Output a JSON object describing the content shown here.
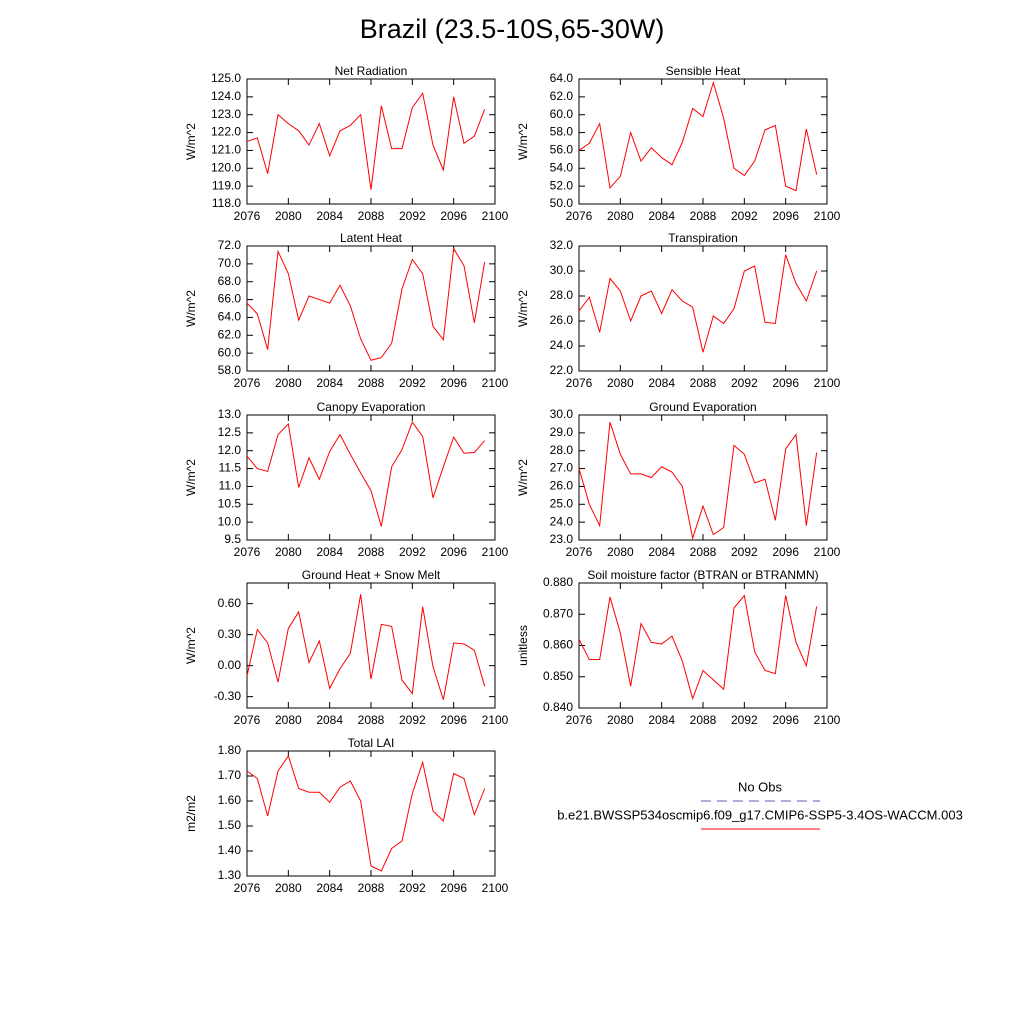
{
  "title": "Brazil (23.5-10S,65-30W)",
  "legend": [
    {
      "name": "No Obs",
      "color": "#5a5ab4",
      "dash": true
    },
    {
      "name": "b.e21.BWSSP534oscmip6.f09_g17.CMIP6-SSP5-3.4OS-WACCM.003",
      "color": "#ff0000"
    }
  ],
  "chart_data": [
    {
      "type": "line",
      "title": "Net Radiation",
      "ylabel": "W/m^2",
      "color": "#ff0000",
      "x": [
        2076,
        2077,
        2078,
        2079,
        2080,
        2081,
        2082,
        2083,
        2084,
        2085,
        2086,
        2087,
        2088,
        2089,
        2090,
        2091,
        2092,
        2093,
        2094,
        2095,
        2096,
        2097,
        2098,
        2099
      ],
      "values": [
        121.5,
        121.7,
        119.7,
        123.0,
        122.5,
        122.1,
        121.3,
        122.5,
        120.7,
        122.1,
        122.4,
        123.0,
        118.8,
        123.5,
        121.1,
        121.1,
        123.4,
        124.2,
        121.3,
        119.9,
        124.0,
        121.4,
        121.8,
        123.3
      ],
      "xlim": [
        2076,
        2100
      ],
      "xticks": [
        2076,
        2080,
        2084,
        2088,
        2092,
        2096,
        2100
      ],
      "ylim": [
        118,
        125
      ],
      "yticks": [
        {
          "value": 118,
          "label": "118.0"
        },
        {
          "value": 119,
          "label": "119.0"
        },
        {
          "value": 120,
          "label": "120.0"
        },
        {
          "value": 121,
          "label": "121.0"
        },
        {
          "value": 122,
          "label": "122.0"
        },
        {
          "value": 123,
          "label": "123.0"
        },
        {
          "value": 124,
          "label": "124.0"
        },
        {
          "value": 125,
          "label": "125.0"
        }
      ]
    },
    {
      "type": "line",
      "title": "Sensible Heat",
      "ylabel": "W/m^2",
      "color": "#ff0000",
      "x": [
        2076,
        2077,
        2078,
        2079,
        2080,
        2081,
        2082,
        2083,
        2084,
        2085,
        2086,
        2087,
        2088,
        2089,
        2090,
        2091,
        2092,
        2093,
        2094,
        2095,
        2096,
        2097,
        2098,
        2099
      ],
      "values": [
        56.0,
        56.8,
        59.0,
        51.8,
        53.1,
        58.0,
        54.8,
        56.3,
        55.2,
        54.4,
        56.9,
        60.7,
        59.8,
        63.6,
        59.6,
        54.0,
        53.2,
        54.8,
        58.3,
        58.8,
        52.0,
        51.5,
        58.4,
        53.3
      ],
      "xlim": [
        2076,
        2100
      ],
      "xticks": [
        2076,
        2080,
        2084,
        2088,
        2092,
        2096,
        2100
      ],
      "ylim": [
        50,
        64
      ],
      "yticks": [
        {
          "value": 50,
          "label": "50.0"
        },
        {
          "value": 52,
          "label": "52.0"
        },
        {
          "value": 54,
          "label": "54.0"
        },
        {
          "value": 56,
          "label": "56.0"
        },
        {
          "value": 58,
          "label": "58.0"
        },
        {
          "value": 60,
          "label": "60.0"
        },
        {
          "value": 62,
          "label": "62.0"
        },
        {
          "value": 64,
          "label": "64.0"
        }
      ]
    },
    {
      "type": "line",
      "title": "Latent Heat",
      "ylabel": "W/m^2",
      "color": "#ff0000",
      "x": [
        2076,
        2077,
        2078,
        2079,
        2080,
        2081,
        2082,
        2083,
        2084,
        2085,
        2086,
        2087,
        2088,
        2089,
        2090,
        2091,
        2092,
        2093,
        2094,
        2095,
        2096,
        2097,
        2098,
        2099
      ],
      "values": [
        65.6,
        64.4,
        60.4,
        71.4,
        68.9,
        63.7,
        66.4,
        66.0,
        65.6,
        67.6,
        65.3,
        61.6,
        59.2,
        59.5,
        61.1,
        67.2,
        70.5,
        68.9,
        63.0,
        61.5,
        71.7,
        69.8,
        63.4,
        70.2
      ],
      "xlim": [
        2076,
        2100
      ],
      "xticks": [
        2076,
        2080,
        2084,
        2088,
        2092,
        2096,
        2100
      ],
      "ylim": [
        58,
        72
      ],
      "yticks": [
        {
          "value": 58,
          "label": "58.0"
        },
        {
          "value": 60,
          "label": "60.0"
        },
        {
          "value": 62,
          "label": "62.0"
        },
        {
          "value": 64,
          "label": "64.0"
        },
        {
          "value": 66,
          "label": "66.0"
        },
        {
          "value": 68,
          "label": "68.0"
        },
        {
          "value": 70,
          "label": "70.0"
        },
        {
          "value": 72,
          "label": "72.0"
        }
      ]
    },
    {
      "type": "line",
      "title": "Transpiration",
      "ylabel": "W/m^2",
      "color": "#ff0000",
      "x": [
        2076,
        2077,
        2078,
        2079,
        2080,
        2081,
        2082,
        2083,
        2084,
        2085,
        2086,
        2087,
        2088,
        2089,
        2090,
        2091,
        2092,
        2093,
        2094,
        2095,
        2096,
        2097,
        2098,
        2099
      ],
      "values": [
        26.8,
        27.9,
        25.1,
        29.4,
        28.4,
        26.0,
        28.0,
        28.4,
        26.6,
        28.5,
        27.6,
        27.1,
        23.5,
        26.4,
        25.8,
        27.0,
        30.0,
        30.4,
        25.9,
        25.8,
        31.3,
        29.0,
        27.6,
        30.0
      ],
      "xlim": [
        2076,
        2100
      ],
      "xticks": [
        2076,
        2080,
        2084,
        2088,
        2092,
        2096,
        2100
      ],
      "ylim": [
        22,
        32
      ],
      "yticks": [
        {
          "value": 22,
          "label": "22.0"
        },
        {
          "value": 24,
          "label": "24.0"
        },
        {
          "value": 26,
          "label": "26.0"
        },
        {
          "value": 28,
          "label": "28.0"
        },
        {
          "value": 30,
          "label": "30.0"
        },
        {
          "value": 32,
          "label": "32.0"
        }
      ]
    },
    {
      "type": "line",
      "title": "Canopy Evaporation",
      "ylabel": "W/m^2",
      "color": "#ff0000",
      "x": [
        2076,
        2077,
        2078,
        2079,
        2080,
        2081,
        2082,
        2083,
        2084,
        2085,
        2086,
        2087,
        2088,
        2089,
        2090,
        2091,
        2092,
        2093,
        2094,
        2095,
        2096,
        2097,
        2098,
        2099
      ],
      "values": [
        11.85,
        11.5,
        11.42,
        12.45,
        12.75,
        10.97,
        11.8,
        11.2,
        11.98,
        12.45,
        11.9,
        11.38,
        10.88,
        9.88,
        11.55,
        12.03,
        12.8,
        12.4,
        10.68,
        11.55,
        12.38,
        11.93,
        11.95,
        12.28
      ],
      "xlim": [
        2076,
        2100
      ],
      "xticks": [
        2076,
        2080,
        2084,
        2088,
        2092,
        2096,
        2100
      ],
      "ylim": [
        9.5,
        13
      ],
      "yticks": [
        9.5,
        {
          "value": 10,
          "label": "10.0"
        },
        10.5,
        {
          "value": 11,
          "label": "11.0"
        },
        11.5,
        {
          "value": 12,
          "label": "12.0"
        },
        12.5,
        {
          "value": 13,
          "label": "13.0"
        }
      ]
    },
    {
      "type": "line",
      "title": "Ground Evaporation",
      "ylabel": "W/m^2",
      "color": "#ff0000",
      "x": [
        2076,
        2077,
        2078,
        2079,
        2080,
        2081,
        2082,
        2083,
        2084,
        2085,
        2086,
        2087,
        2088,
        2089,
        2090,
        2091,
        2092,
        2093,
        2094,
        2095,
        2096,
        2097,
        2098,
        2099
      ],
      "values": [
        27.0,
        25.0,
        23.8,
        29.6,
        27.8,
        26.7,
        26.7,
        26.5,
        27.1,
        26.8,
        26.0,
        23.1,
        24.9,
        23.3,
        23.7,
        28.3,
        27.8,
        26.2,
        26.4,
        24.1,
        28.1,
        28.9,
        23.8,
        27.9
      ],
      "xlim": [
        2076,
        2100
      ],
      "xticks": [
        2076,
        2080,
        2084,
        2088,
        2092,
        2096,
        2100
      ],
      "ylim": [
        23,
        30
      ],
      "yticks": [
        {
          "value": 23,
          "label": "23.0"
        },
        {
          "value": 24,
          "label": "24.0"
        },
        {
          "value": 25,
          "label": "25.0"
        },
        {
          "value": 26,
          "label": "26.0"
        },
        {
          "value": 27,
          "label": "27.0"
        },
        {
          "value": 28,
          "label": "28.0"
        },
        {
          "value": 29,
          "label": "29.0"
        },
        {
          "value": 30,
          "label": "30.0"
        }
      ]
    },
    {
      "type": "line",
      "title": "Ground Heat + Snow Melt",
      "ylabel": "W/m^2",
      "color": "#ff0000",
      "x": [
        2076,
        2077,
        2078,
        2079,
        2080,
        2081,
        2082,
        2083,
        2084,
        2085,
        2086,
        2087,
        2088,
        2089,
        2090,
        2091,
        2092,
        2093,
        2094,
        2095,
        2096,
        2097,
        2098,
        2099
      ],
      "values": [
        -0.1,
        0.35,
        0.22,
        -0.16,
        0.36,
        0.52,
        0.03,
        0.24,
        -0.22,
        -0.03,
        0.12,
        0.69,
        -0.13,
        0.4,
        0.38,
        -0.14,
        -0.27,
        0.57,
        -0.01,
        -0.33,
        0.22,
        0.21,
        0.15,
        -0.2
      ],
      "xlim": [
        2076,
        2100
      ],
      "xticks": [
        2076,
        2080,
        2084,
        2088,
        2092,
        2096,
        2100
      ],
      "ylim": [
        -0.41,
        0.8
      ],
      "yticks": [
        {
          "value": -0.3,
          "label": "-0.30"
        },
        {
          "value": 0,
          "label": "0.00"
        },
        {
          "value": 0.3,
          "label": "0.30"
        },
        {
          "value": 0.6,
          "label": "0.60"
        }
      ]
    },
    {
      "type": "line",
      "title": "Soil moisture factor (BTRAN or BTRANMN)",
      "ylabel": "unitless",
      "color": "#ff0000",
      "x": [
        2076,
        2077,
        2078,
        2079,
        2080,
        2081,
        2082,
        2083,
        2084,
        2085,
        2086,
        2087,
        2088,
        2089,
        2090,
        2091,
        2092,
        2093,
        2094,
        2095,
        2096,
        2097,
        2098,
        2099
      ],
      "values": [
        0.862,
        0.8555,
        0.8555,
        0.8755,
        0.864,
        0.847,
        0.867,
        0.861,
        0.8605,
        0.863,
        0.855,
        0.843,
        0.852,
        0.849,
        0.846,
        0.872,
        0.876,
        0.858,
        0.852,
        0.851,
        0.876,
        0.861,
        0.8535,
        0.8725
      ],
      "xlim": [
        2076,
        2100
      ],
      "xticks": [
        2076,
        2080,
        2084,
        2088,
        2092,
        2096,
        2100
      ],
      "ylim": [
        0.84,
        0.88
      ],
      "yticks": [
        {
          "value": 0.84,
          "label": "0.840"
        },
        {
          "value": 0.85,
          "label": "0.850"
        },
        {
          "value": 0.86,
          "label": "0.860"
        },
        {
          "value": 0.87,
          "label": "0.870"
        },
        {
          "value": 0.88,
          "label": "0.880"
        }
      ]
    },
    {
      "type": "line",
      "title": "Total LAI",
      "ylabel": "m2/m2",
      "color": "#ff0000",
      "x": [
        2076,
        2077,
        2078,
        2079,
        2080,
        2081,
        2082,
        2083,
        2084,
        2085,
        2086,
        2087,
        2088,
        2089,
        2090,
        2091,
        2092,
        2093,
        2094,
        2095,
        2096,
        2097,
        2098,
        2099
      ],
      "values": [
        1.72,
        1.69,
        1.54,
        1.72,
        1.78,
        1.65,
        1.635,
        1.635,
        1.595,
        1.655,
        1.68,
        1.6,
        1.34,
        1.32,
        1.41,
        1.44,
        1.63,
        1.755,
        1.56,
        1.52,
        1.71,
        1.69,
        1.545,
        1.65
      ],
      "xlim": [
        2076,
        2100
      ],
      "xticks": [
        2076,
        2080,
        2084,
        2088,
        2092,
        2096,
        2100
      ],
      "ylim": [
        1.3,
        1.8
      ],
      "yticks": [
        {
          "value": 1.3,
          "label": "1.30"
        },
        {
          "value": 1.4,
          "label": "1.40"
        },
        {
          "value": 1.5,
          "label": "1.50"
        },
        {
          "value": 1.6,
          "label": "1.60"
        },
        {
          "value": 1.7,
          "label": "1.70"
        },
        {
          "value": 1.8,
          "label": "1.80"
        }
      ]
    }
  ]
}
